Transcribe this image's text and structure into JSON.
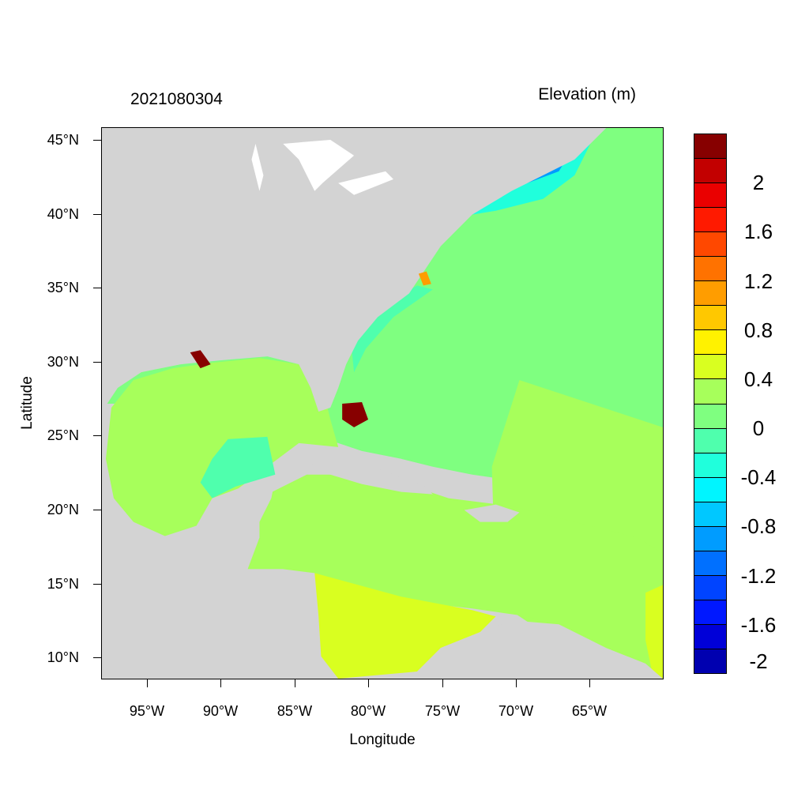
{
  "header": {
    "timestamp": "2021080304",
    "variable": "Elevation (m)"
  },
  "axes": {
    "x_label": "Longitude",
    "y_label": "Latitude",
    "x_ticks": [
      "95°W",
      "90°W",
      "85°W",
      "80°W",
      "75°W",
      "70°W",
      "65°W"
    ],
    "y_ticks": [
      "45°N",
      "40°N",
      "35°N",
      "30°N",
      "25°N",
      "20°N",
      "15°N",
      "10°N"
    ],
    "lon_range": [
      -98,
      -60
    ],
    "lat_range": [
      8.5,
      46
    ]
  },
  "colorbar": {
    "colors": [
      "#870000",
      "#c20000",
      "#ea0000",
      "#ff1a00",
      "#ff4800",
      "#ff7200",
      "#ff9d00",
      "#ffc800",
      "#fff200",
      "#d9ff20",
      "#a7ff5b",
      "#7fff80",
      "#4fffad",
      "#20ffdc",
      "#00f5ff",
      "#00c8ff",
      "#009cff",
      "#0070ff",
      "#0044ff",
      "#0018ff",
      "#0000d8",
      "#0000b0"
    ],
    "labels": [
      "2",
      "1.6",
      "1.2",
      "0.8",
      "0.4",
      "0",
      "-0.4",
      "-0.8",
      "-1.2",
      "-1.6",
      "-2"
    ]
  },
  "map_colors": {
    "land": "#d3d3d3",
    "lakes": "#ffffff",
    "ocean_neutral": "#7fff80",
    "gulf_caribbean": "#a7ff5b",
    "colombia_venezuela": "#d9ff20",
    "near_shore_low": "#4fffad",
    "gulf_maine_low": "#20ffdc",
    "gulf_maine_lowest": "#009cff",
    "coastal_surge": "#870000",
    "coastal_orange": "#ff9d00"
  }
}
